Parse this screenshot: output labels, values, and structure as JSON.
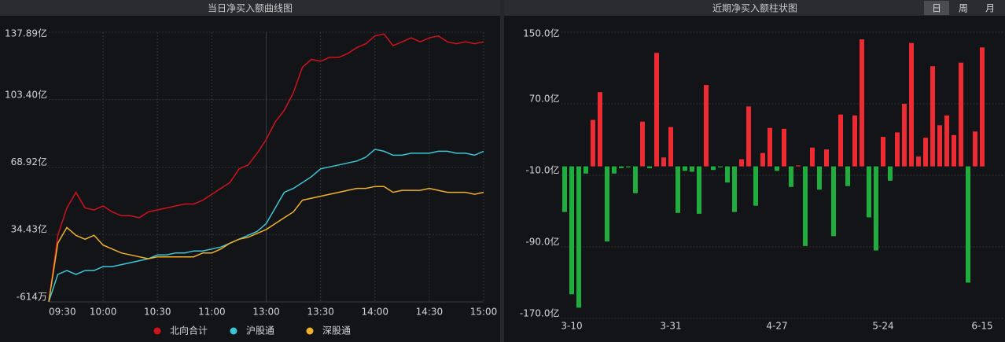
{
  "chart_data": [
    {
      "type": "line",
      "title": "当日净买入额曲线图",
      "categories": [
        "09:30",
        null,
        null,
        null,
        null,
        null,
        "10:00",
        null,
        null,
        null,
        null,
        null,
        "10:30",
        null,
        null,
        null,
        null,
        null,
        "11:00",
        null,
        null,
        null,
        null,
        null,
        "13:00",
        null,
        null,
        null,
        null,
        null,
        "13:30",
        null,
        null,
        null,
        null,
        null,
        "14:00",
        null,
        null,
        null,
        null,
        null,
        "14:30",
        null,
        null,
        null,
        null,
        null,
        "15:00"
      ],
      "series": [
        {
          "name": "北向合计",
          "color": "#d0121b",
          "values": [
            0,
            34,
            48,
            56,
            48,
            47,
            49,
            46,
            44,
            44,
            43,
            46,
            47,
            48,
            49,
            50,
            50,
            52,
            55,
            58,
            61,
            68,
            70,
            76,
            83,
            92,
            98,
            107,
            120,
            124,
            123,
            125,
            125,
            127,
            130,
            132,
            136,
            137,
            131,
            133,
            135,
            133,
            135,
            136,
            133,
            132,
            133,
            132,
            133
          ]
        },
        {
          "name": "沪股通",
          "color": "#3cc6d6",
          "values": [
            0,
            14,
            16,
            14,
            16,
            16,
            18,
            18,
            19,
            20,
            21,
            22,
            24,
            24,
            25,
            25,
            26,
            26,
            27,
            28,
            30,
            32,
            34,
            36,
            40,
            48,
            56,
            58,
            61,
            64,
            68,
            69,
            70,
            71,
            72,
            74,
            78,
            77,
            75,
            75,
            76,
            76,
            76,
            77,
            77,
            76,
            76,
            75,
            77
          ]
        },
        {
          "name": "深股通",
          "color": "#f0b12a",
          "values": [
            0,
            30,
            38,
            34,
            32,
            34,
            29,
            27,
            25,
            24,
            23,
            22,
            23,
            23,
            23,
            23,
            23,
            25,
            25,
            27,
            30,
            32,
            33,
            35,
            37,
            40,
            43,
            46,
            52,
            53,
            54,
            55,
            56,
            57,
            58,
            58,
            59,
            59,
            56,
            57,
            57,
            57,
            58,
            57,
            56,
            56,
            56,
            55,
            56
          ]
        }
      ],
      "ylim": [
        -0.0614,
        137.89
      ],
      "yticks": [
        {
          "value": 137.89,
          "label": "137.89亿"
        },
        {
          "value": 103.4,
          "label": "103.40亿"
        },
        {
          "value": 68.92,
          "label": "68.92亿"
        },
        {
          "value": 34.43,
          "label": "34.43亿"
        },
        {
          "value": -0.0614,
          "label": "-614万"
        }
      ],
      "grid": true,
      "legend": "bottom"
    },
    {
      "type": "bar",
      "title": "近期净买入额柱状图",
      "categories": [
        null,
        "3-10",
        null,
        null,
        null,
        null,
        null,
        null,
        null,
        null,
        null,
        null,
        null,
        null,
        null,
        "3-31",
        null,
        null,
        null,
        null,
        null,
        null,
        null,
        null,
        null,
        null,
        null,
        null,
        null,
        null,
        "4-27",
        null,
        null,
        null,
        null,
        null,
        null,
        null,
        null,
        null,
        null,
        null,
        null,
        null,
        null,
        "5-24",
        null,
        null,
        null,
        null,
        null,
        null,
        null,
        null,
        null,
        null,
        null,
        null,
        null,
        "6-15"
      ],
      "values": [
        -51,
        -143,
        -158,
        -8,
        52,
        83,
        -84,
        -8,
        -2,
        -1,
        -30,
        50,
        -2,
        127,
        10,
        44,
        -52,
        -5,
        -6,
        -53,
        91,
        -4,
        -1,
        -18,
        -51,
        8,
        67,
        -44,
        15,
        43,
        -5,
        42,
        -23,
        1,
        -89,
        21,
        -26,
        19,
        -78,
        58,
        -22,
        57,
        142,
        -57,
        -94,
        33,
        -16,
        38,
        70,
        138,
        11,
        32,
        112,
        46,
        57,
        35,
        116,
        -130,
        39,
        133
      ],
      "positive_color": "#ee2a33",
      "negative_color": "#1fae3e",
      "ylim": [
        -170,
        150
      ],
      "yticks": [
        {
          "value": 150,
          "label": "150.0亿"
        },
        {
          "value": 70,
          "label": "70.0亿"
        },
        {
          "value": -10,
          "label": "-10.0亿"
        },
        {
          "value": -90,
          "label": "-90.0亿"
        },
        {
          "value": -170,
          "label": "-170.0亿"
        }
      ],
      "grid": true
    }
  ],
  "period_tabs": [
    "日",
    "周",
    "月"
  ],
  "selected_tab": 0
}
